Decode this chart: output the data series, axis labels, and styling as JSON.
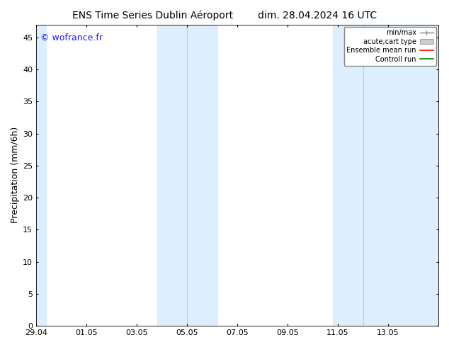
{
  "title_left": "ENS Time Series Dublin Aéroport",
  "title_right": "dim. 28.04.2024 16 UTC",
  "ylabel": "Precipitation (mm/6h)",
  "watermark": "© wofrance.fr",
  "watermark_color": "#1a1aff",
  "xlim_start": 0,
  "xlim_end": 16,
  "ylim": [
    0,
    47
  ],
  "yticks": [
    0,
    5,
    10,
    15,
    20,
    25,
    30,
    35,
    40,
    45
  ],
  "xtick_labels": [
    "29.04",
    "01.05",
    "03.05",
    "05.05",
    "07.05",
    "09.05",
    "11.05",
    "13.05"
  ],
  "xtick_positions": [
    0,
    2,
    4,
    6,
    8,
    10,
    12,
    14
  ],
  "background_color": "#ffffff",
  "plot_bg_color": "#ddeeff",
  "shaded_bands_light": [
    {
      "x_start": 2,
      "x_end": 4,
      "color": "#ffffff"
    },
    {
      "x_start": 6,
      "x_end": 8,
      "color": "#ffffff"
    },
    {
      "x_start": 10,
      "x_end": 11,
      "color": "#ffffff"
    }
  ],
  "shaded_bands_blue": [
    {
      "x_start": 0,
      "x_end": 2,
      "color": "#ddeeff"
    },
    {
      "x_start": 4,
      "x_end": 6,
      "color": "#ddeeff"
    },
    {
      "x_start": 8,
      "x_end": 10,
      "color": "#ddeeff"
    },
    {
      "x_start": 11,
      "x_end": 13,
      "color": "#ddeeff"
    },
    {
      "x_start": 13,
      "x_end": 16,
      "color": "#ddeeff"
    }
  ],
  "title_fontsize": 10,
  "tick_fontsize": 8,
  "ylabel_fontsize": 9,
  "watermark_fontsize": 9
}
